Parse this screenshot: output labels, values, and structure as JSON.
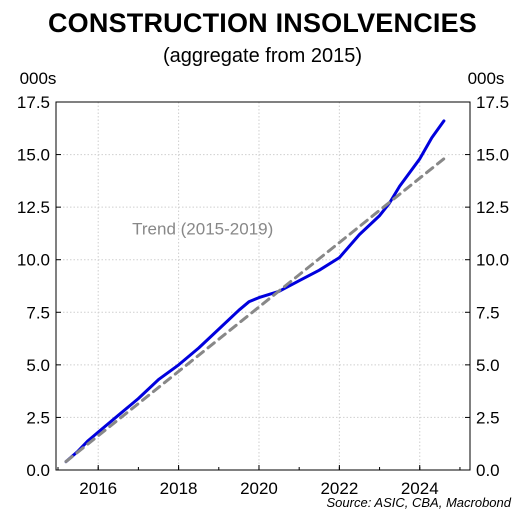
{
  "title": "CONSTRUCTION INSOLVENCIES",
  "subtitle": "(aggregate from 2015)",
  "source": "Source: ASIC, CBA, Macrobond",
  "chart_data": {
    "type": "line",
    "title": "CONSTRUCTION INSOLVENCIES",
    "subtitle": "(aggregate from 2015)",
    "y_unit_left": "000s",
    "y_unit_right": "000s",
    "xlim": [
      2014.95,
      2025.25
    ],
    "ylim": [
      0,
      17.5
    ],
    "x_ticks": [
      2016,
      2018,
      2020,
      2022,
      2024
    ],
    "y_ticks": [
      0.0,
      2.5,
      5.0,
      7.5,
      10.0,
      12.5,
      15.0,
      17.5
    ],
    "y_tick_labels": [
      "0.0",
      "2.5",
      "5.0",
      "7.5",
      "10.0",
      "12.5",
      "15.0",
      "17.5"
    ],
    "grid": true,
    "series": [
      {
        "color": "#0000dd",
        "style": "solid",
        "points": [
          [
            2015.2,
            0.4
          ],
          [
            2015.5,
            0.9
          ],
          [
            2015.75,
            1.4
          ],
          [
            2016.0,
            1.8
          ],
          [
            2016.5,
            2.6
          ],
          [
            2017.0,
            3.4
          ],
          [
            2017.5,
            4.3
          ],
          [
            2018.0,
            5.0
          ],
          [
            2018.5,
            5.8
          ],
          [
            2019.0,
            6.7
          ],
          [
            2019.5,
            7.6
          ],
          [
            2019.75,
            8.0
          ],
          [
            2020.0,
            8.2
          ],
          [
            2020.5,
            8.5
          ],
          [
            2021.0,
            9.0
          ],
          [
            2021.5,
            9.5
          ],
          [
            2022.0,
            10.1
          ],
          [
            2022.5,
            11.2
          ],
          [
            2023.0,
            12.1
          ],
          [
            2023.25,
            12.7
          ],
          [
            2023.5,
            13.5
          ],
          [
            2024.0,
            14.8
          ],
          [
            2024.3,
            15.8
          ],
          [
            2024.6,
            16.6
          ]
        ]
      },
      {
        "name": "Trend (2015-2019)",
        "color": "#888888",
        "style": "dashed",
        "points": [
          [
            2015.2,
            0.4
          ],
          [
            2024.6,
            14.8
          ]
        ]
      }
    ],
    "annotations": [
      {
        "text": "Trend (2015-2019)",
        "x": 2018.6,
        "y": 11.2,
        "color": "#888888"
      }
    ]
  }
}
